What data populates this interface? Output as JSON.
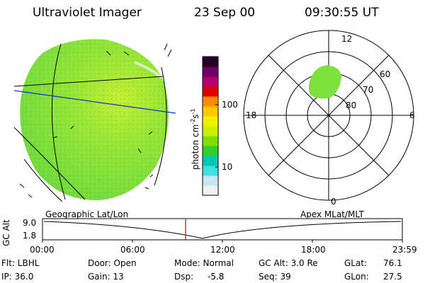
{
  "header": {
    "instrument": "Ultraviolet Imager",
    "date": "23 Sep 00",
    "time": "09:30:55 UT"
  },
  "colorbar": {
    "unit_label": "photon cm",
    "unit_sup1": "-2",
    "unit_mid": "s",
    "unit_sup2": "-1",
    "tick_100": "100",
    "tick_10": "10",
    "colors": [
      "#f0f0f0",
      "#c8e6f0",
      "#40e0e0",
      "#00c8b4",
      "#32cd32",
      "#7fe000",
      "#c8f000",
      "#f0f000",
      "#ffc800",
      "#ff8c00",
      "#e00000",
      "#b4006e",
      "#6e0064",
      "#280028"
    ]
  },
  "polar": {
    "lat_labels": [
      "60",
      "70",
      "80"
    ],
    "mlt_top": "12",
    "mlt_left": "18",
    "mlt_right": "6",
    "mlt_bottom": "0"
  },
  "timeline": {
    "left_label": "Geographic Lat/Lon",
    "right_label": "Apex MLat/MLT",
    "axis_title": "GC Alt",
    "y_top": "9.0",
    "y_bottom": "1.8",
    "x_ticks": [
      "00:00",
      "06:00",
      "12:00",
      "18:00",
      "23:59"
    ],
    "current_marker_time": "09:30:55"
  },
  "status": {
    "filter": "Flt: LBHL",
    "ip": "IP: 36.0",
    "door": "Door: Open",
    "gain": "Gain: 13",
    "mode": "Mode: Normal",
    "dsp_label": "Dsp:",
    "dsp_value": "-5.8",
    "gc_alt": "GC Alt: 3.0 Re",
    "seq": "Seq: 39",
    "glat_label": "GLat:",
    "glat_value": "76.1",
    "glon_label": "GLon:",
    "glon_value": "27.5"
  },
  "colors": {
    "earth_fill": "#7ee03a",
    "earth_bright": "#c8ef32",
    "auroral_patch": "#7ee03a",
    "marker": "#cc0000",
    "blue_line": "#1030d0"
  }
}
